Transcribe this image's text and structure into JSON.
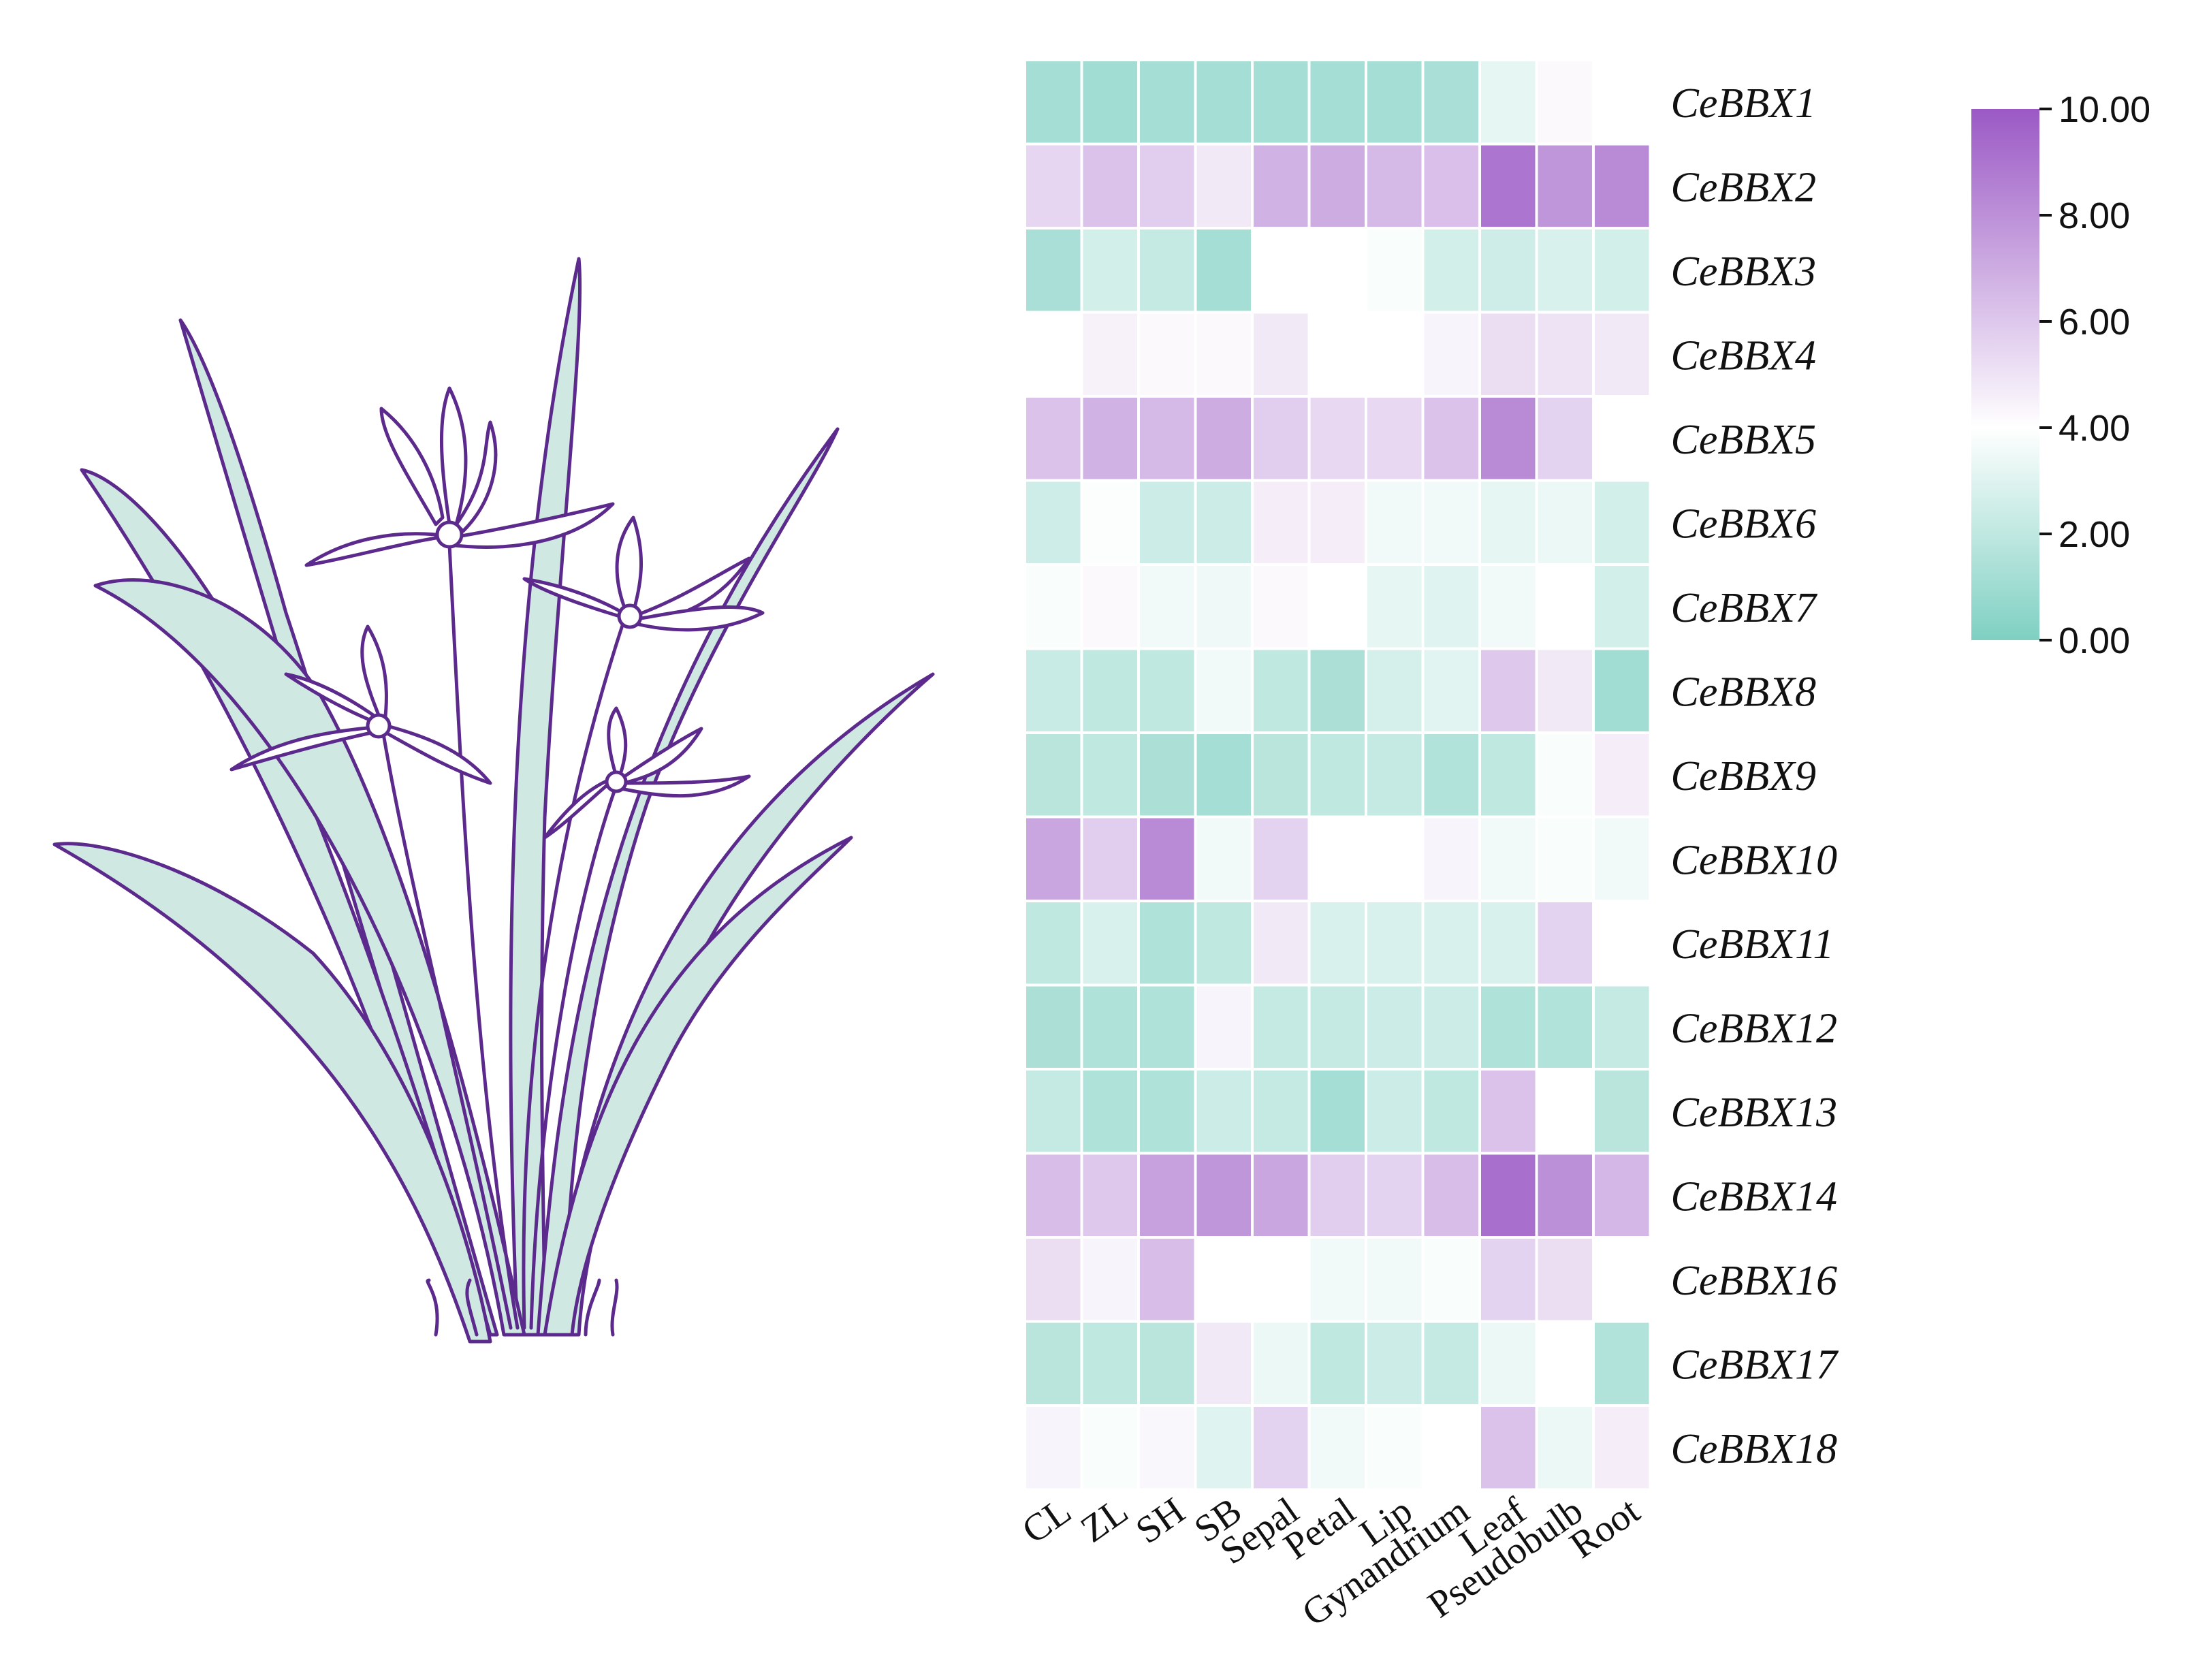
{
  "chart_data": {
    "type": "heatmap",
    "rows": [
      "CeBBX1",
      "CeBBX2",
      "CeBBX3",
      "CeBBX4",
      "CeBBX5",
      "CeBBX6",
      "CeBBX7",
      "CeBBX8",
      "CeBBX9",
      "CeBBX10",
      "CeBBX11",
      "CeBBX12",
      "CeBBX13",
      "CeBBX14",
      "CeBBX16",
      "CeBBX17",
      "CeBBX18"
    ],
    "columns": [
      "CL",
      "ZL",
      "SH",
      "SB",
      "Sepal",
      "Petal",
      "Lip",
      "Gynandrium",
      "Leaf",
      "Pseudobulb",
      "Root"
    ],
    "values": [
      [
        1.2,
        1.1,
        1.2,
        1.2,
        1.2,
        1.2,
        1.2,
        1.3,
        3.2,
        4.2,
        4.0
      ],
      [
        5.5,
        6.2,
        5.8,
        4.8,
        6.8,
        7.0,
        6.5,
        6.3,
        9.0,
        7.8,
        8.2
      ],
      [
        1.3,
        2.6,
        2.2,
        1.2,
        4.0,
        4.0,
        3.8,
        2.6,
        2.5,
        2.8,
        2.6
      ],
      [
        4.0,
        4.5,
        4.2,
        4.2,
        4.8,
        4.0,
        4.0,
        4.4,
        5.2,
        5.0,
        4.8
      ],
      [
        6.2,
        6.8,
        6.5,
        7.0,
        5.8,
        5.4,
        5.4,
        6.2,
        8.2,
        5.6,
        4.0
      ],
      [
        2.5,
        3.9,
        2.4,
        2.4,
        4.6,
        4.6,
        3.6,
        3.6,
        3.2,
        3.4,
        2.6
      ],
      [
        3.8,
        4.2,
        3.6,
        3.5,
        4.2,
        4.0,
        3.2,
        3.0,
        3.6,
        4.0,
        2.6
      ],
      [
        2.3,
        2.0,
        2.0,
        3.6,
        2.0,
        1.4,
        2.7,
        3.1,
        6.0,
        4.8,
        1.1
      ],
      [
        1.8,
        2.0,
        1.4,
        1.2,
        1.8,
        2.0,
        2.2,
        1.6,
        2.0,
        3.8,
        4.6
      ],
      [
        7.2,
        5.8,
        8.2,
        3.6,
        5.6,
        4.0,
        4.0,
        4.4,
        3.6,
        3.8,
        3.6
      ],
      [
        2.0,
        2.8,
        1.5,
        2.0,
        4.8,
        2.8,
        2.8,
        2.8,
        2.8,
        5.6,
        4.0
      ],
      [
        1.4,
        1.5,
        1.5,
        4.4,
        2.2,
        2.2,
        2.4,
        2.4,
        1.5,
        1.6,
        2.2
      ],
      [
        2.2,
        1.5,
        1.5,
        2.4,
        2.2,
        1.2,
        2.4,
        2.0,
        6.2,
        4.0,
        1.8
      ],
      [
        6.4,
        6.0,
        7.4,
        7.8,
        7.2,
        5.8,
        5.6,
        6.4,
        9.2,
        8.0,
        6.6
      ],
      [
        5.2,
        4.4,
        6.4,
        4.0,
        4.0,
        3.6,
        3.6,
        3.8,
        5.6,
        5.2,
        4.0
      ],
      [
        1.8,
        2.0,
        1.8,
        4.8,
        3.4,
        2.0,
        2.4,
        2.2,
        3.4,
        4.0,
        1.6
      ],
      [
        4.4,
        3.8,
        4.3,
        3.0,
        5.6,
        3.6,
        3.8,
        4.0,
        6.2,
        3.4,
        4.6
      ]
    ],
    "colorbar": {
      "ticks": [
        "10.00",
        "8.00",
        "6.00",
        "4.00",
        "2.00",
        "0.00"
      ],
      "range": [
        0,
        10
      ],
      "colors": {
        "low": "#7fd0c2",
        "mid": "#ffffff",
        "high": "#9b59c5"
      },
      "mid_value": 4.0
    },
    "legend_placement": "top-right"
  },
  "illustration": {
    "subject": "orchid-plant",
    "colors": {
      "outline": "#5b2a8c",
      "leaf_fill": "#cfe8e2"
    }
  }
}
